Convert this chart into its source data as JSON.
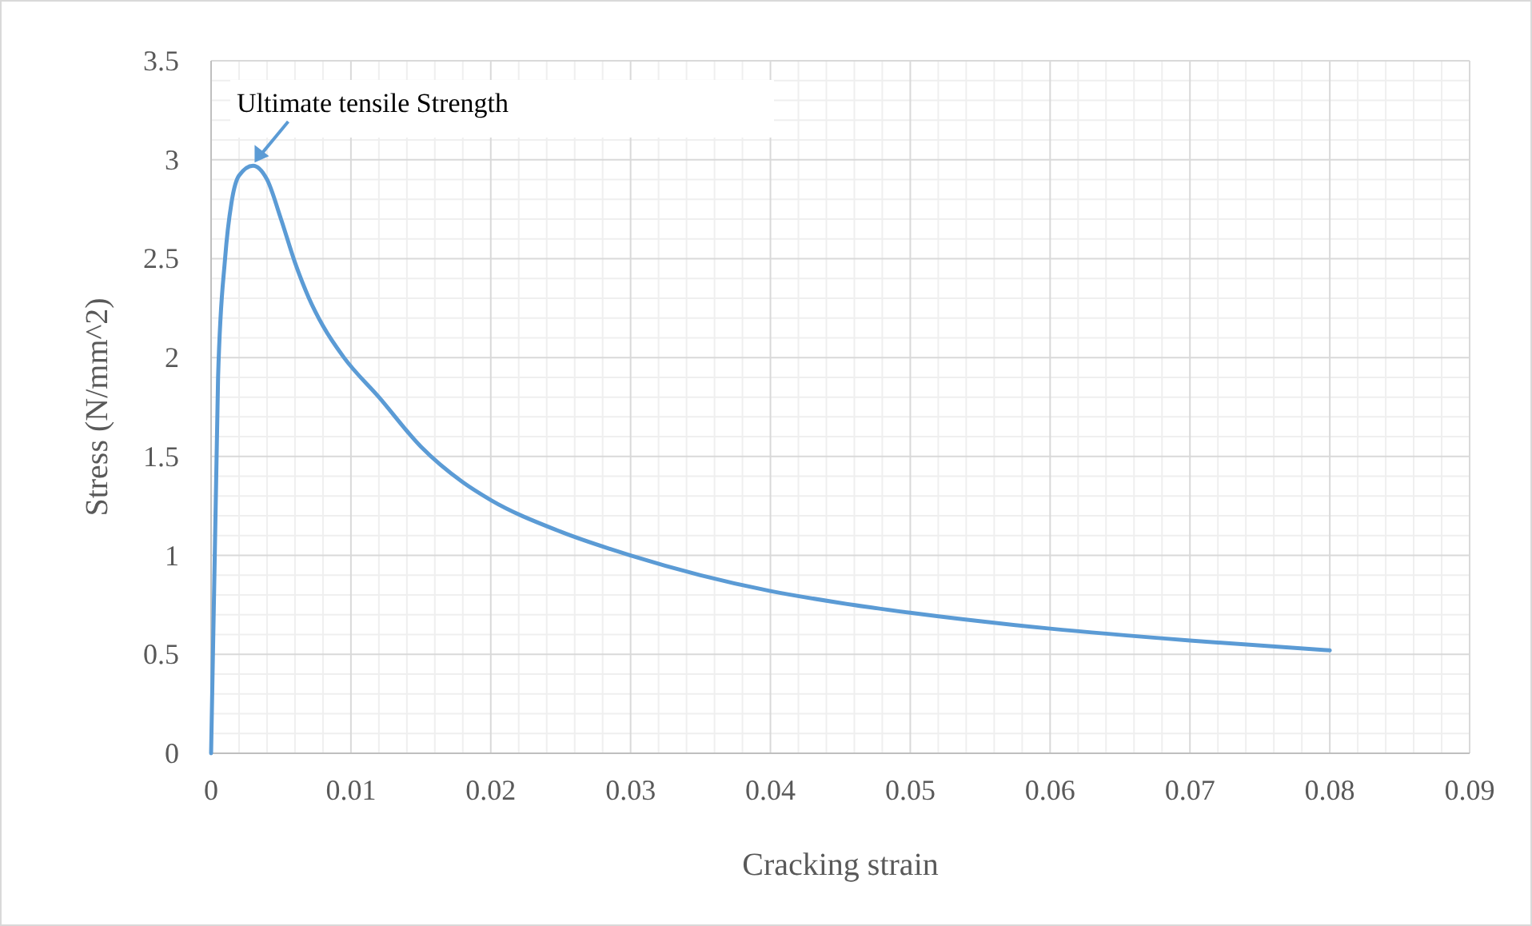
{
  "chart_data": {
    "type": "line",
    "xlabel": "Cracking strain",
    "ylabel": "Stress (N/mm^2)",
    "xlim": [
      0,
      0.09
    ],
    "xticks": [
      0,
      0.01,
      0.02,
      0.03,
      0.04,
      0.05,
      0.06,
      0.07,
      0.08,
      0.09
    ],
    "ylim": [
      0,
      3.5
    ],
    "yticks": [
      0,
      0.5,
      1,
      1.5,
      2,
      2.5,
      3,
      3.5
    ],
    "grid": true,
    "marker": "none",
    "line_style": "solid",
    "series": [
      {
        "color": "#5b9bd5",
        "x": [
          0,
          0.0005,
          0.001,
          0.0015,
          0.002,
          0.003,
          0.004,
          0.005,
          0.006,
          0.007,
          0.008,
          0.0095,
          0.012,
          0.015,
          0.018,
          0.02,
          0.025,
          0.03,
          0.035,
          0.04,
          0.045,
          0.05,
          0.06,
          0.07,
          0.08
        ],
        "values": [
          0,
          1.9,
          2.5,
          2.8,
          2.92,
          2.97,
          2.9,
          2.7,
          2.48,
          2.3,
          2.16,
          2.0,
          1.8,
          1.55,
          1.37,
          1.28,
          1.12,
          1.0,
          0.9,
          0.82,
          0.76,
          0.71,
          0.63,
          0.57,
          0.52
        ]
      }
    ],
    "annotations": [
      {
        "text": "Ultimate tensile Strength",
        "x": 0.003,
        "y": 2.97
      }
    ]
  }
}
